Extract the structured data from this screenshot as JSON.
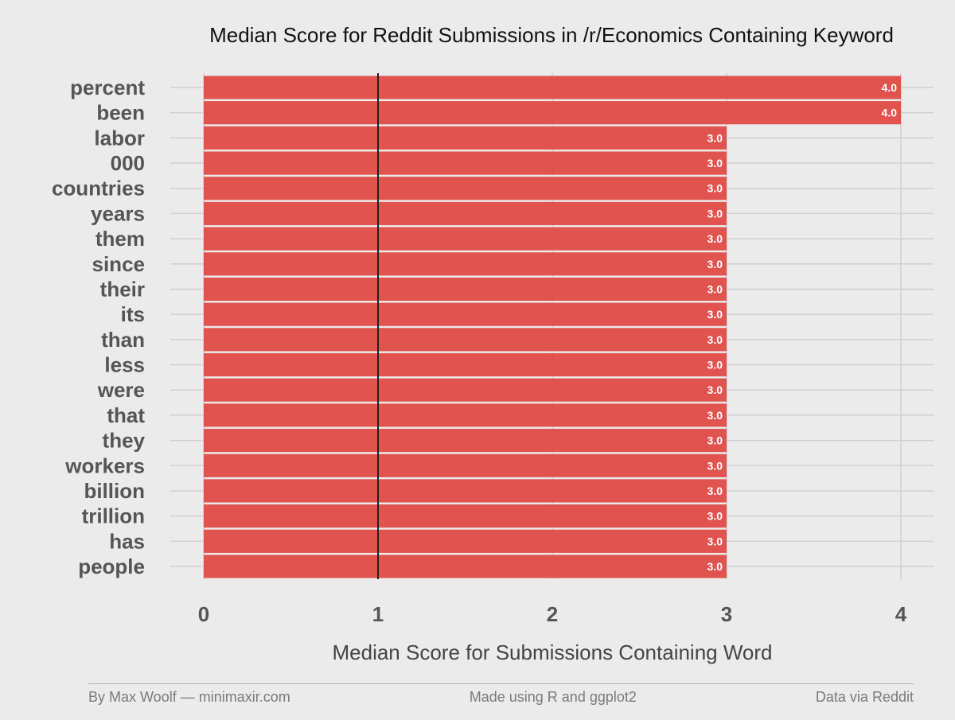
{
  "chart_data": {
    "type": "bar",
    "orientation": "horizontal",
    "title": "Median Score for Reddit Submissions in /r/Economics Containing Keyword",
    "xlabel": "Median Score for Submissions Containing Word",
    "ylabel": "",
    "categories": [
      "percent",
      "been",
      "labor",
      "000",
      "countries",
      "years",
      "them",
      "since",
      "their",
      "its",
      "than",
      "less",
      "were",
      "that",
      "they",
      "workers",
      "billion",
      "trillion",
      "has",
      "people"
    ],
    "values": [
      4.0,
      4.0,
      3.0,
      3.0,
      3.0,
      3.0,
      3.0,
      3.0,
      3.0,
      3.0,
      3.0,
      3.0,
      3.0,
      3.0,
      3.0,
      3.0,
      3.0,
      3.0,
      3.0,
      3.0
    ],
    "data_labels": [
      "4.0",
      "4.0",
      "3.0",
      "3.0",
      "3.0",
      "3.0",
      "3.0",
      "3.0",
      "3.0",
      "3.0",
      "3.0",
      "3.0",
      "3.0",
      "3.0",
      "3.0",
      "3.0",
      "3.0",
      "3.0",
      "3.0",
      "3.0"
    ],
    "xlim": [
      0,
      4
    ],
    "xticks": [
      0,
      1,
      2,
      3,
      4
    ],
    "xtick_labels": [
      "0",
      "1",
      "2",
      "3",
      "4"
    ],
    "reference_line": 1,
    "grid": true,
    "bar_color": "#e04b47",
    "reference_line_color": "#222222"
  },
  "footer": {
    "left": "By Max Woolf — minimaxir.com",
    "center": "Made using R and ggplot2",
    "right": "Data via Reddit"
  }
}
